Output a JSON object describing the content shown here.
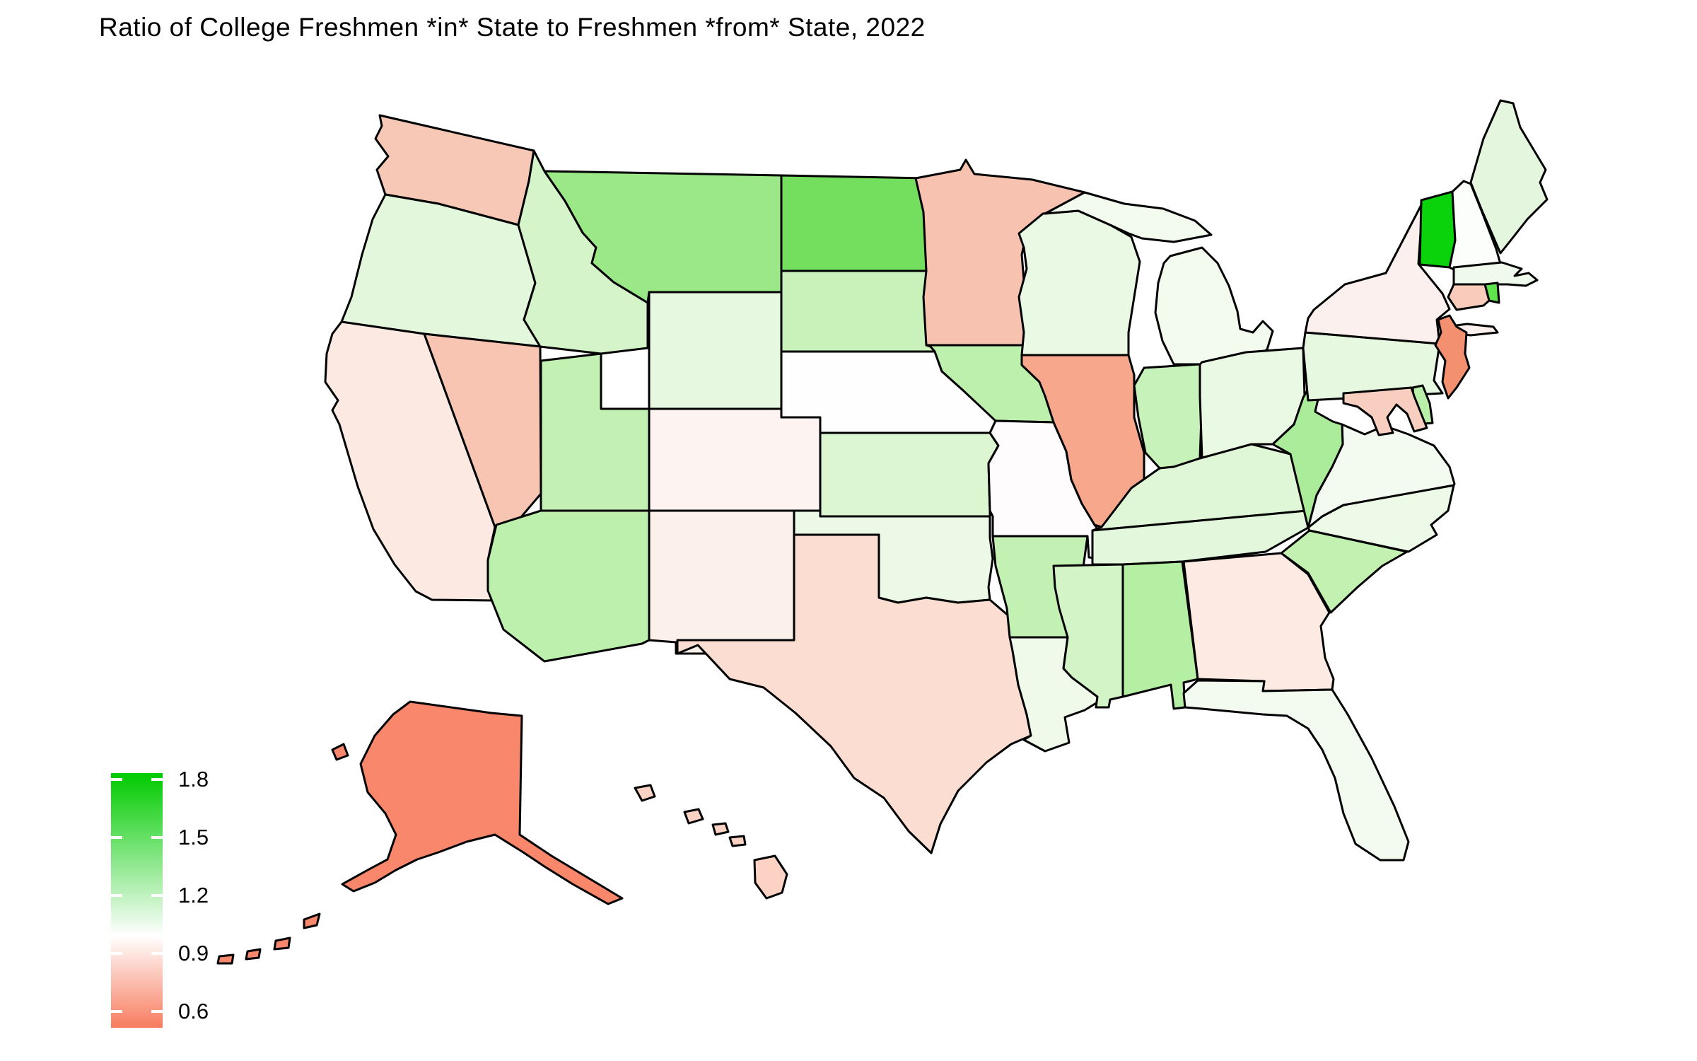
{
  "title": "Ratio of College Freshmen *in* State to Freshmen *from* State, 2022",
  "legend": {
    "ticks": [
      {
        "label": "1.8",
        "value": 1.8
      },
      {
        "label": "1.5",
        "value": 1.5
      },
      {
        "label": "1.2",
        "value": 1.2
      },
      {
        "label": "0.9",
        "value": 0.9
      },
      {
        "label": "0.6",
        "value": 0.6
      }
    ],
    "range_top": 1.85,
    "range_bottom": 0.52,
    "midpoint": 1.0,
    "color_high": "#00CB00",
    "color_mid": "#FFFFFF",
    "color_low": "#F87C5F",
    "white_stop_percent": 64
  },
  "chart_data": {
    "type": "choropleth",
    "title": "Ratio of College Freshmen *in* State to Freshmen *from* State, 2022",
    "legend_ticks": [
      1.8,
      1.5,
      1.2,
      0.9,
      0.6
    ],
    "colorscale": {
      "high": "#00CB00",
      "mid": "#FFFFFF",
      "low": "#F87C5F",
      "midpoint": 1.0
    },
    "states": [
      {
        "id": "WA",
        "name": "Washington",
        "value": 0.84,
        "color": "#F8C8B6"
      },
      {
        "id": "OR",
        "name": "Oregon",
        "value": 1.1,
        "color": "#E3F7DC"
      },
      {
        "id": "CA",
        "name": "California",
        "value": 0.93,
        "color": "#FBE9E2"
      },
      {
        "id": "NV",
        "name": "Nevada",
        "value": 0.83,
        "color": "#F8C5B3"
      },
      {
        "id": "ID",
        "name": "Idaho",
        "value": 1.22,
        "color": "#D5F4C9"
      },
      {
        "id": "MT",
        "name": "Montana",
        "value": 1.42,
        "color": "#9BE888"
      },
      {
        "id": "WY",
        "name": "Wyoming",
        "value": 1.09,
        "color": "#E7F8E0"
      },
      {
        "id": "UT",
        "name": "Utah",
        "value": 1.3,
        "color": "#C3F1B3"
      },
      {
        "id": "AZ",
        "name": "Arizona",
        "value": 1.31,
        "color": "#BDF0AC"
      },
      {
        "id": "NM",
        "name": "New Mexico",
        "value": 0.95,
        "color": "#FCF0EB"
      },
      {
        "id": "CO",
        "name": "Colorado",
        "value": 0.97,
        "color": "#FDF4F1"
      },
      {
        "id": "ND",
        "name": "North Dakota",
        "value": 1.5,
        "color": "#74DF5F"
      },
      {
        "id": "SD",
        "name": "South Dakota",
        "value": 1.25,
        "color": "#C8F2BA"
      },
      {
        "id": "NE",
        "name": "Nebraska",
        "value": 1.0,
        "color": "#FEFEFE"
      },
      {
        "id": "KS",
        "name": "Kansas",
        "value": 1.15,
        "color": "#DCF6D2"
      },
      {
        "id": "OK",
        "name": "Oklahoma",
        "value": 1.05,
        "color": "#EDF9E7"
      },
      {
        "id": "TX",
        "name": "Texas",
        "value": 0.9,
        "color": "#FBDDD2"
      },
      {
        "id": "MN",
        "name": "Minnesota",
        "value": 0.82,
        "color": "#F8C2B0"
      },
      {
        "id": "IA",
        "name": "Iowa",
        "value": 1.3,
        "color": "#BEF0AD"
      },
      {
        "id": "MO",
        "name": "Missouri",
        "value": 0.99,
        "color": "#FEFCFC"
      },
      {
        "id": "AR",
        "name": "Arkansas",
        "value": 1.28,
        "color": "#C3F1B4"
      },
      {
        "id": "LA",
        "name": "Louisiana",
        "value": 1.06,
        "color": "#EFFAEA"
      },
      {
        "id": "WI",
        "name": "Wisconsin",
        "value": 1.07,
        "color": "#EAF9E4"
      },
      {
        "id": "IL",
        "name": "Illinois",
        "value": 0.76,
        "color": "#F6A78C"
      },
      {
        "id": "MI",
        "name": "Michigan",
        "value": 1.04,
        "color": "#F2FBEE"
      },
      {
        "id": "IN",
        "name": "Indiana",
        "value": 1.26,
        "color": "#C7F2B9"
      },
      {
        "id": "OH",
        "name": "Ohio",
        "value": 1.08,
        "color": "#EAF9E3"
      },
      {
        "id": "KY",
        "name": "Kentucky",
        "value": 1.13,
        "color": "#DFF7D7"
      },
      {
        "id": "TN",
        "name": "Tennessee",
        "value": 1.12,
        "color": "#E2F7DB"
      },
      {
        "id": "MS",
        "name": "Mississippi",
        "value": 1.2,
        "color": "#D3F4C7"
      },
      {
        "id": "AL",
        "name": "Alabama",
        "value": 1.34,
        "color": "#B4EFA3"
      },
      {
        "id": "GA",
        "name": "Georgia",
        "value": 0.92,
        "color": "#FCEAE3"
      },
      {
        "id": "FL",
        "name": "Florida",
        "value": 1.03,
        "color": "#F3FBF0"
      },
      {
        "id": "SC",
        "name": "South Carolina",
        "value": 1.27,
        "color": "#C2F1B2"
      },
      {
        "id": "NC",
        "name": "North Carolina",
        "value": 1.06,
        "color": "#EDFAE8"
      },
      {
        "id": "VA",
        "name": "Virginia",
        "value": 1.03,
        "color": "#F3FBF0"
      },
      {
        "id": "WV",
        "name": "West Virginia",
        "value": 1.37,
        "color": "#AAEC99"
      },
      {
        "id": "PA",
        "name": "Pennsylvania",
        "value": 1.1,
        "color": "#E6F8DF"
      },
      {
        "id": "NY",
        "name": "New York",
        "value": 0.94,
        "color": "#FBF0ED"
      },
      {
        "id": "VT",
        "name": "Vermont",
        "value": 1.8,
        "color": "#0BD30B"
      },
      {
        "id": "NH",
        "name": "New Hampshire",
        "value": 1.01,
        "color": "#FCFEFC"
      },
      {
        "id": "ME",
        "name": "Maine",
        "value": 1.12,
        "color": "#E4F7DE"
      },
      {
        "id": "MA",
        "name": "Massachusetts",
        "value": 1.05,
        "color": "#F0FAEC"
      },
      {
        "id": "RI",
        "name": "Rhode Island",
        "value": 1.55,
        "color": "#5FE44C"
      },
      {
        "id": "CT",
        "name": "Connecticut",
        "value": 0.85,
        "color": "#F9CBBB"
      },
      {
        "id": "NJ",
        "name": "New Jersey",
        "value": 0.68,
        "color": "#F2906F"
      },
      {
        "id": "DE",
        "name": "Delaware",
        "value": 1.33,
        "color": "#B9EFA8"
      },
      {
        "id": "MD",
        "name": "Maryland",
        "value": 0.84,
        "color": "#F8CEC0"
      },
      {
        "id": "AK",
        "name": "Alaska",
        "value": 0.55,
        "color": "#F8876B"
      },
      {
        "id": "HI",
        "name": "Hawaii",
        "value": 0.85,
        "color": "#FBD2C3"
      }
    ]
  }
}
